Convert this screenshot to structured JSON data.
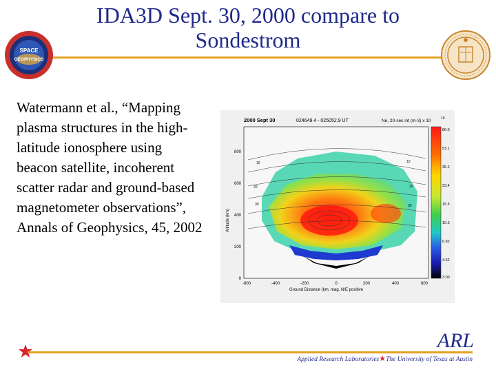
{
  "slide": {
    "title": "IDA3D Sept. 30, 2000 compare to Sondestrom",
    "citation": "Watermann et al., “Mapping plasma structures in the high-latitude ionosphere using beacon satellite, incoherent scatter radar and ground-based magnetometer observations”, Annals of Geophysics, 45, 2002"
  },
  "figure": {
    "date_label": "2000 Sept 30",
    "time_label": "024649.4 - 025052.9 UT",
    "quantity_label": "Ne, 20-sec int (m-3) x 10",
    "quantity_exponent": "10",
    "y_axis_label": "Altitude (km)",
    "y_ticks": [
      "800",
      "600",
      "400",
      "200",
      "0"
    ],
    "x_axis_label": "Ground Distance (km, mag. N/E positive",
    "x_ticks": [
      "-600",
      "-400",
      "-200",
      "0",
      "200",
      "400",
      "600"
    ],
    "colorbar_ticks": [
      "80.0",
      "53.1",
      "35.2",
      "23.4",
      "15.5",
      "10.3",
      "6.82",
      "4.52",
      "3.00"
    ],
    "contour_labels": [
      "10",
      "20",
      "30",
      "10",
      "20",
      "30"
    ]
  },
  "footer": {
    "brand": "ARL",
    "left_text": "Applied Research Laboratories",
    "right_text": "The University of Texas at Austin"
  },
  "colors": {
    "title": "#1f2a8a",
    "accent_rule": "#e6a020",
    "star": "#d8262f"
  }
}
